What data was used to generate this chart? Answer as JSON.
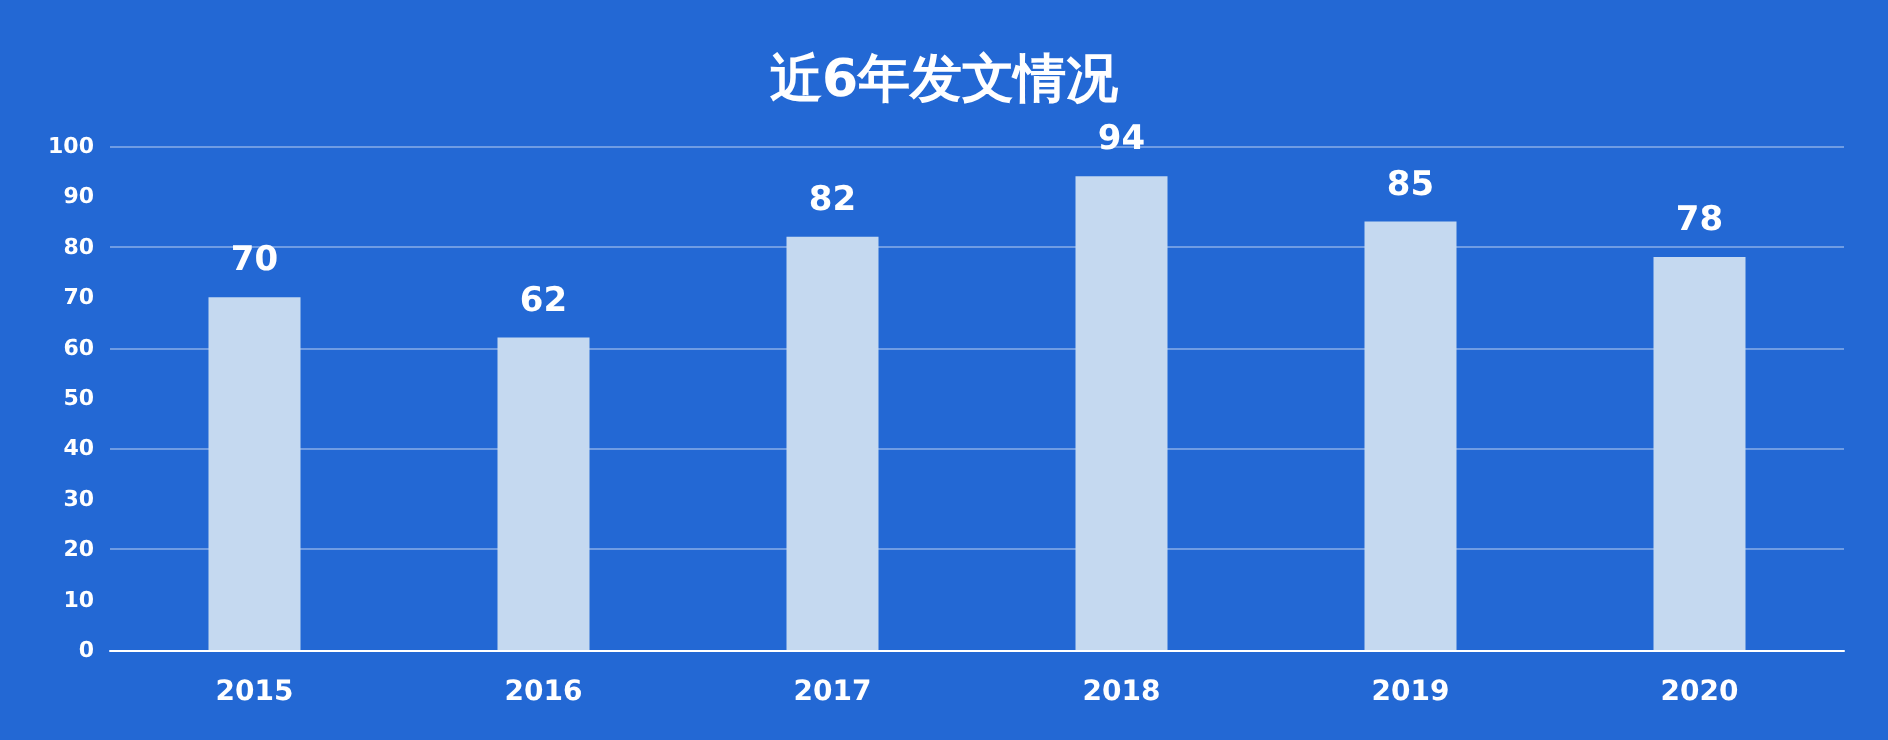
{
  "chart_data": {
    "type": "bar",
    "title": "近6年发文情况",
    "categories": [
      "2015",
      "2016",
      "2017",
      "2018",
      "2019",
      "2020"
    ],
    "values": [
      70,
      62,
      82,
      94,
      85,
      78
    ],
    "color": "#c5d9f0",
    "ylim": [
      0,
      100
    ],
    "yticks": [
      0,
      10,
      20,
      30,
      40,
      50,
      60,
      70,
      80,
      90,
      100
    ],
    "grid": "y",
    "data_labels": true
  }
}
